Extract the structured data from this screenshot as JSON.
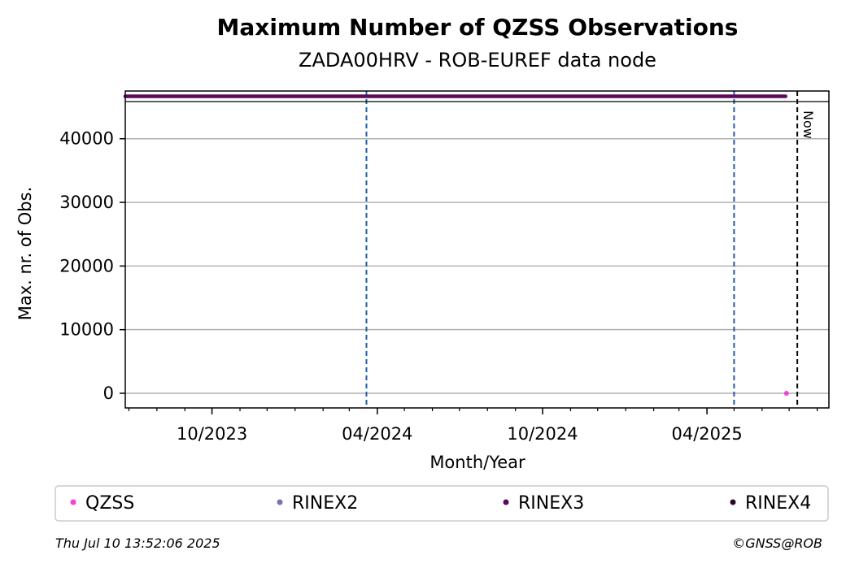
{
  "chart_data": {
    "type": "scatter",
    "title": "Maximum Number of QZSS Observations",
    "subtitle": "ZADA00HRV - ROB-EUREF data node",
    "xlabel": "Month/Year",
    "ylabel": "Max. nr. of Obs.",
    "x_range": [
      "2023-06-27",
      "2025-08-14"
    ],
    "ylim": [
      -2300,
      47500
    ],
    "y_ticks": [
      0,
      10000,
      20000,
      30000,
      40000
    ],
    "y_tick_labels": [
      "0",
      "10000",
      "20000",
      "30000",
      "40000"
    ],
    "x_ticks": [
      "2023-10-01",
      "2024-04-01",
      "2024-10-01",
      "2025-04-01"
    ],
    "x_tick_labels": [
      "10/2023",
      "04/2024",
      "10/2024",
      "04/2025"
    ],
    "x_minor_ticks": [
      "2023-07-01",
      "2023-08-01",
      "2023-09-01",
      "2023-11-01",
      "2023-12-01",
      "2024-01-01",
      "2024-02-01",
      "2024-03-01",
      "2024-05-01",
      "2024-06-01",
      "2024-07-01",
      "2024-08-01",
      "2024-09-01",
      "2024-11-01",
      "2024-12-01",
      "2025-01-01",
      "2025-02-01",
      "2025-03-01",
      "2025-05-01",
      "2025-06-01",
      "2025-07-01",
      "2025-08-01"
    ],
    "grid": "horizontal",
    "vertical_lines": [
      {
        "date": "2024-03-20",
        "color": "#1f5fa8",
        "style": "dashed"
      },
      {
        "date": "2025-05-01",
        "color": "#1f5fa8",
        "style": "dashed"
      }
    ],
    "now_line": {
      "date": "2025-07-10",
      "label": "Now",
      "color": "#000000"
    },
    "rinex_strip": {
      "x_start": "2023-06-27",
      "x_end": "2025-06-27",
      "color": "#5c0a5c"
    },
    "series": [
      {
        "name": "QZSS",
        "color": "#f542d4",
        "points": [
          {
            "x": "2025-06-28",
            "y": 0
          }
        ]
      },
      {
        "name": "RINEX2",
        "color": "#7b6fb5",
        "points": []
      },
      {
        "name": "RINEX3",
        "color": "#5c0a5c",
        "points": []
      },
      {
        "name": "RINEX4",
        "color": "#2a0a2a",
        "points": []
      }
    ],
    "legend_placement": "bottom"
  },
  "footer": {
    "timestamp": "Thu Jul 10 13:52:06 2025",
    "credit": "©GNSS@ROB"
  }
}
